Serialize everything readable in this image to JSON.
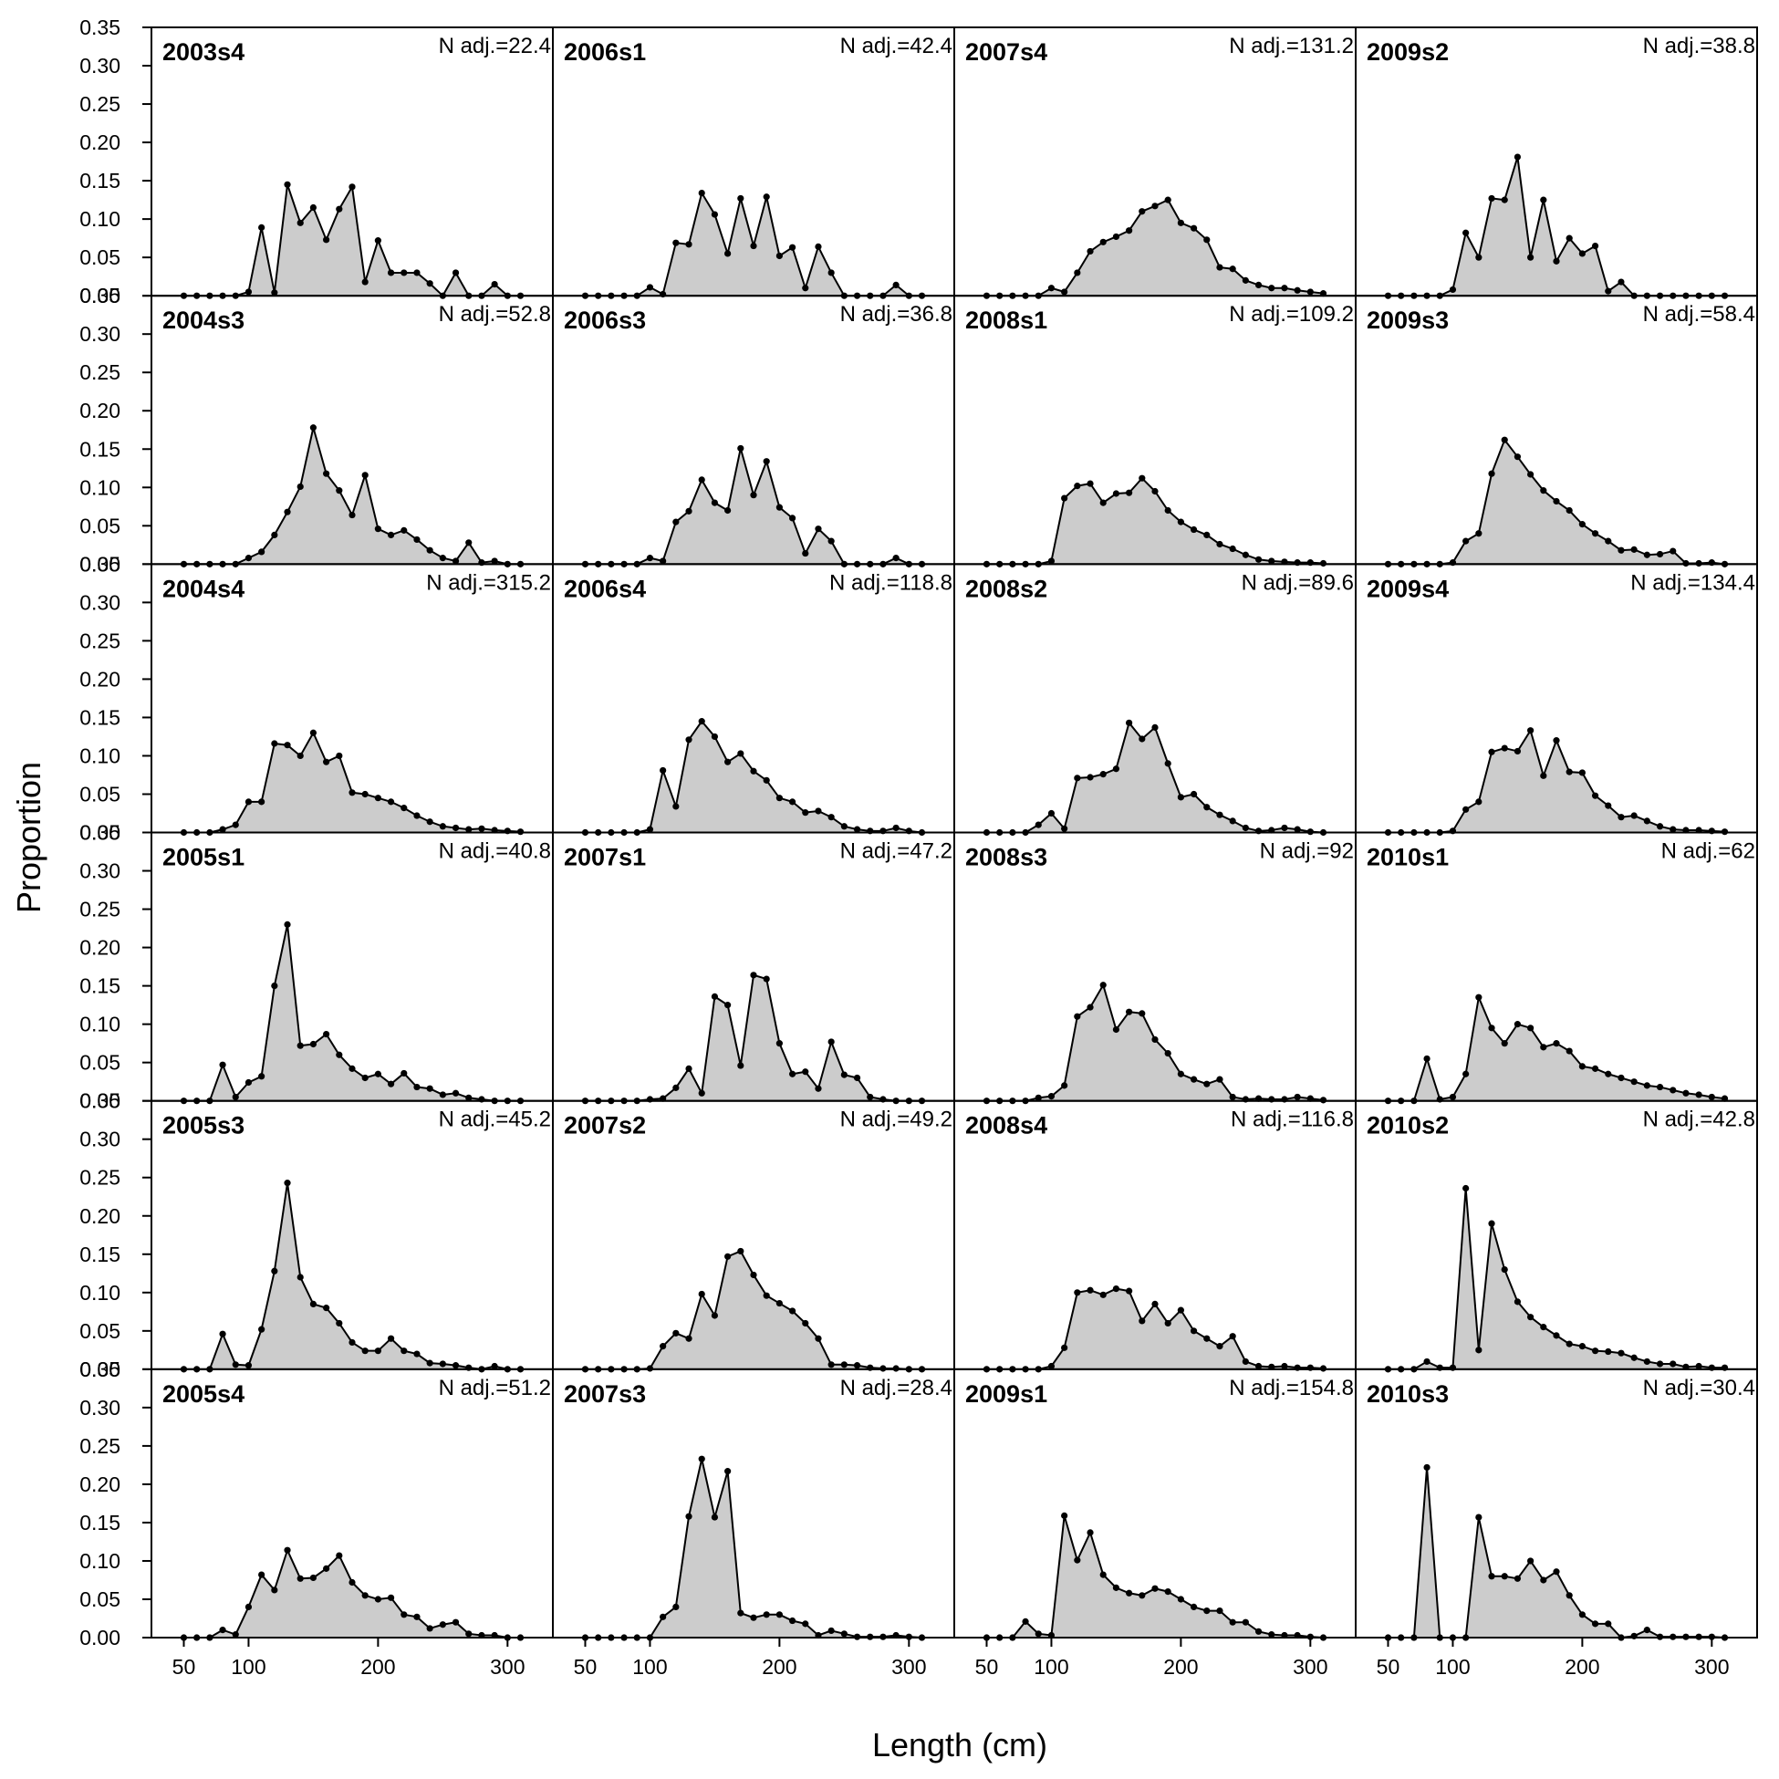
{
  "chart_data": {
    "type": "area",
    "xlabel": "Length (cm)",
    "ylabel": "Proportion",
    "xlim": [
      25,
      335
    ],
    "ylim": [
      0,
      0.35
    ],
    "x_ticks": [
      50,
      100,
      200,
      300
    ],
    "y_ticks": [
      0.0,
      0.05,
      0.1,
      0.15,
      0.2,
      0.25,
      0.3,
      0.35
    ],
    "y_tick_labels": [
      "0.00",
      "0.05",
      "0.10",
      "0.15",
      "0.20",
      "0.25",
      "0.30",
      "0.35"
    ],
    "layout": {
      "rows": 6,
      "columns": 4,
      "order": "column-major"
    },
    "fill_color": "#cccccc",
    "line_color": "#000000",
    "x": [
      50,
      60,
      70,
      80,
      90,
      100,
      110,
      120,
      130,
      140,
      150,
      160,
      170,
      180,
      190,
      200,
      210,
      220,
      230,
      240,
      250,
      260,
      270,
      280,
      290,
      300,
      310
    ],
    "panels": [
      {
        "title": "2003s4",
        "n_label": "N adj.=22.4",
        "values": [
          0,
          0,
          0,
          0,
          0,
          0.005,
          0.089,
          0.004,
          0.145,
          0.095,
          0.115,
          0.073,
          0.113,
          0.142,
          0.018,
          0.072,
          0.03,
          0.03,
          0.03,
          0.016,
          0,
          0.03,
          0,
          0,
          0.015,
          0,
          0
        ]
      },
      {
        "title": "2004s3",
        "n_label": "N adj.=52.8",
        "values": [
          0,
          0,
          0,
          0,
          0,
          0.008,
          0.016,
          0.038,
          0.068,
          0.101,
          0.178,
          0.118,
          0.096,
          0.064,
          0.116,
          0.046,
          0.038,
          0.044,
          0.032,
          0.018,
          0.008,
          0.004,
          0.028,
          0.002,
          0.004,
          0,
          0
        ]
      },
      {
        "title": "2004s4",
        "n_label": "N adj.=315.2",
        "values": [
          0,
          0,
          0,
          0.004,
          0.01,
          0.04,
          0.04,
          0.116,
          0.114,
          0.1,
          0.13,
          0.092,
          0.1,
          0.052,
          0.05,
          0.045,
          0.04,
          0.032,
          0.022,
          0.014,
          0.008,
          0.006,
          0.004,
          0.005,
          0.003,
          0.002,
          0.001
        ]
      },
      {
        "title": "2005s1",
        "n_label": "N adj.=40.8",
        "values": [
          0,
          0,
          0,
          0.047,
          0.005,
          0.024,
          0.032,
          0.15,
          0.23,
          0.072,
          0.074,
          0.087,
          0.06,
          0.042,
          0.03,
          0.035,
          0.022,
          0.036,
          0.018,
          0.016,
          0.008,
          0.01,
          0.004,
          0.002,
          0,
          0,
          0
        ]
      },
      {
        "title": "2005s3",
        "n_label": "N adj.=45.2",
        "values": [
          0,
          0,
          0,
          0.046,
          0.006,
          0.005,
          0.052,
          0.128,
          0.243,
          0.12,
          0.085,
          0.08,
          0.06,
          0.035,
          0.024,
          0.024,
          0.04,
          0.024,
          0.02,
          0.008,
          0.007,
          0.005,
          0.002,
          0,
          0.004,
          0,
          0
        ]
      },
      {
        "title": "2005s4",
        "n_label": "N adj.=51.2",
        "values": [
          0,
          0,
          0,
          0.01,
          0.004,
          0.04,
          0.082,
          0.062,
          0.114,
          0.077,
          0.078,
          0.09,
          0.107,
          0.072,
          0.055,
          0.05,
          0.052,
          0.03,
          0.027,
          0.012,
          0.017,
          0.02,
          0.005,
          0.003,
          0.003,
          0,
          0
        ]
      },
      {
        "title": "2006s1",
        "n_label": "N adj.=42.4",
        "values": [
          0,
          0,
          0,
          0,
          0,
          0.011,
          0.002,
          0.069,
          0.067,
          0.134,
          0.106,
          0.055,
          0.127,
          0.065,
          0.129,
          0.052,
          0.063,
          0.01,
          0.064,
          0.03,
          0,
          0,
          0,
          0,
          0.014,
          0,
          0
        ]
      },
      {
        "title": "2006s3",
        "n_label": "N adj.=36.8",
        "values": [
          0,
          0,
          0,
          0,
          0,
          0.008,
          0.004,
          0.055,
          0.069,
          0.11,
          0.08,
          0.07,
          0.151,
          0.09,
          0.134,
          0.074,
          0.06,
          0.014,
          0.046,
          0.03,
          0,
          0,
          0,
          0,
          0.008,
          0,
          0
        ]
      },
      {
        "title": "2006s4",
        "n_label": "N adj.=118.8",
        "values": [
          0,
          0,
          0,
          0,
          0,
          0.004,
          0.081,
          0.034,
          0.121,
          0.145,
          0.125,
          0.092,
          0.103,
          0.08,
          0.068,
          0.045,
          0.04,
          0.026,
          0.028,
          0.02,
          0.008,
          0.004,
          0.002,
          0.002,
          0.006,
          0.002,
          0
        ]
      },
      {
        "title": "2007s1",
        "n_label": "N adj.=47.2",
        "values": [
          0,
          0,
          0,
          0,
          0,
          0.002,
          0.003,
          0.017,
          0.042,
          0.01,
          0.136,
          0.125,
          0.046,
          0.164,
          0.159,
          0.075,
          0.035,
          0.038,
          0.016,
          0.077,
          0.034,
          0.03,
          0.005,
          0.002,
          0,
          0,
          0
        ]
      },
      {
        "title": "2007s2",
        "n_label": "N adj.=49.2",
        "values": [
          0,
          0,
          0,
          0,
          0,
          0.001,
          0.03,
          0.047,
          0.04,
          0.098,
          0.07,
          0.147,
          0.154,
          0.123,
          0.096,
          0.086,
          0.076,
          0.06,
          0.04,
          0.006,
          0.006,
          0.005,
          0.002,
          0.001,
          0.001,
          0,
          0
        ]
      },
      {
        "title": "2007s3",
        "n_label": "N adj.=28.4",
        "values": [
          0,
          0,
          0,
          0,
          0,
          0,
          0.027,
          0.04,
          0.158,
          0.233,
          0.157,
          0.217,
          0.032,
          0.026,
          0.03,
          0.03,
          0.022,
          0.018,
          0.003,
          0.009,
          0.005,
          0.001,
          0.001,
          0.001,
          0.003,
          0.001,
          0
        ]
      },
      {
        "title": "2007s4",
        "n_label": "N adj.=131.2",
        "values": [
          0,
          0,
          0,
          0,
          0,
          0.01,
          0.005,
          0.03,
          0.058,
          0.07,
          0.077,
          0.085,
          0.11,
          0.117,
          0.125,
          0.095,
          0.088,
          0.073,
          0.037,
          0.035,
          0.02,
          0.014,
          0.01,
          0.01,
          0.007,
          0.005,
          0.003
        ]
      },
      {
        "title": "2008s1",
        "n_label": "N adj.=109.2",
        "values": [
          0,
          0,
          0,
          0,
          0,
          0.004,
          0.086,
          0.102,
          0.105,
          0.08,
          0.092,
          0.093,
          0.112,
          0.095,
          0.07,
          0.055,
          0.045,
          0.038,
          0.026,
          0.02,
          0.012,
          0.006,
          0.004,
          0.003,
          0.002,
          0.002,
          0.001
        ]
      },
      {
        "title": "2008s2",
        "n_label": "N adj.=89.6",
        "values": [
          0,
          0,
          0,
          0,
          0.01,
          0.025,
          0.005,
          0.071,
          0.072,
          0.076,
          0.083,
          0.143,
          0.122,
          0.137,
          0.09,
          0.046,
          0.05,
          0.033,
          0.023,
          0.015,
          0.006,
          0.002,
          0.003,
          0.006,
          0.004,
          0.001,
          0
        ]
      },
      {
        "title": "2008s3",
        "n_label": "N adj.=92",
        "values": [
          0,
          0,
          0,
          0,
          0.004,
          0.006,
          0.02,
          0.11,
          0.122,
          0.151,
          0.093,
          0.116,
          0.114,
          0.08,
          0.062,
          0.035,
          0.028,
          0.022,
          0.028,
          0.005,
          0.002,
          0.003,
          0.002,
          0.002,
          0.005,
          0.003,
          0.001
        ]
      },
      {
        "title": "2008s4",
        "n_label": "N adj.=116.8",
        "values": [
          0,
          0,
          0,
          0,
          0,
          0.004,
          0.028,
          0.1,
          0.103,
          0.097,
          0.105,
          0.102,
          0.063,
          0.085,
          0.06,
          0.077,
          0.05,
          0.04,
          0.03,
          0.043,
          0.01,
          0.004,
          0.003,
          0.004,
          0.002,
          0.002,
          0.001
        ]
      },
      {
        "title": "2009s1",
        "n_label": "N adj.=154.8",
        "values": [
          0,
          0,
          0,
          0.021,
          0.005,
          0.003,
          0.159,
          0.101,
          0.137,
          0.082,
          0.065,
          0.058,
          0.055,
          0.064,
          0.06,
          0.05,
          0.04,
          0.035,
          0.035,
          0.02,
          0.02,
          0.008,
          0.004,
          0.003,
          0.003,
          0.001,
          0
        ]
      },
      {
        "title": "2009s2",
        "n_label": "N adj.=38.8",
        "values": [
          0,
          0,
          0,
          0,
          0,
          0.008,
          0.082,
          0.05,
          0.127,
          0.125,
          0.181,
          0.05,
          0.125,
          0.045,
          0.075,
          0.055,
          0.065,
          0.006,
          0.018,
          0,
          0,
          0,
          0,
          0,
          0,
          0,
          0
        ]
      },
      {
        "title": "2009s3",
        "n_label": "N adj.=58.4",
        "values": [
          0,
          0,
          0,
          0,
          0,
          0.002,
          0.03,
          0.04,
          0.118,
          0.162,
          0.14,
          0.117,
          0.096,
          0.082,
          0.07,
          0.052,
          0.04,
          0.03,
          0.018,
          0.019,
          0.012,
          0.013,
          0.017,
          0.001,
          0.001,
          0.002,
          0
        ]
      },
      {
        "title": "2009s4",
        "n_label": "N adj.=134.4",
        "values": [
          0,
          0,
          0,
          0,
          0,
          0.002,
          0.03,
          0.04,
          0.105,
          0.11,
          0.106,
          0.133,
          0.074,
          0.12,
          0.079,
          0.078,
          0.048,
          0.035,
          0.02,
          0.022,
          0.015,
          0.008,
          0.004,
          0.003,
          0.003,
          0.002,
          0.001
        ]
      },
      {
        "title": "2010s1",
        "n_label": "N adj.=62",
        "values": [
          0,
          0,
          0,
          0.055,
          0.002,
          0.005,
          0.035,
          0.135,
          0.095,
          0.075,
          0.1,
          0.095,
          0.07,
          0.075,
          0.065,
          0.045,
          0.042,
          0.035,
          0.03,
          0.025,
          0.02,
          0.018,
          0.014,
          0.01,
          0.008,
          0.005,
          0.003
        ]
      },
      {
        "title": "2010s2",
        "n_label": "N adj.=42.8",
        "values": [
          0,
          0,
          0,
          0.01,
          0.002,
          0.002,
          0.236,
          0.025,
          0.19,
          0.13,
          0.088,
          0.068,
          0.055,
          0.044,
          0.033,
          0.03,
          0.024,
          0.023,
          0.021,
          0.015,
          0.01,
          0.007,
          0.007,
          0.003,
          0.004,
          0.002,
          0.002
        ]
      },
      {
        "title": "2010s3",
        "n_label": "N adj.=30.4",
        "values": [
          0,
          0,
          0,
          0.222,
          0,
          0,
          0,
          0.157,
          0.08,
          0.08,
          0.077,
          0.1,
          0.075,
          0.086,
          0.055,
          0.03,
          0.018,
          0.018,
          0,
          0.002,
          0.01,
          0.001,
          0.001,
          0.001,
          0.001,
          0.001,
          0
        ]
      }
    ]
  }
}
